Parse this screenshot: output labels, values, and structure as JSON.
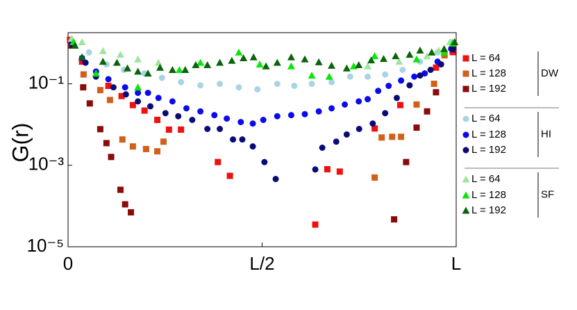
{
  "chart_data": {
    "type": "scatter",
    "ylabel": "G(r)",
    "yscale": "log",
    "xlim": [
      0,
      1
    ],
    "xticks": [
      0,
      {
        "value": 0.5,
        "label": "L/2"
      },
      {
        "value": 1,
        "label": "L"
      }
    ],
    "ylim": [
      1e-05,
      1.8
    ],
    "yticks": [
      {
        "value": 1e-05,
        "label": "10⁻⁵"
      },
      {
        "value": 0.001,
        "label": "10⁻³"
      },
      {
        "value": 0.1,
        "label": "10⁻¹"
      }
    ],
    "legend_groups": [
      "DW",
      "HI",
      "SF"
    ],
    "series": [
      {
        "name": "L = 64",
        "color": "#ee1111",
        "marker": "square",
        "x": [
          0.005,
          0.036,
          0.104,
          0.138,
          0.167,
          0.197,
          0.23,
          0.26,
          0.291,
          0.386,
          0.417,
          0.637,
          0.668,
          0.7,
          0.79,
          0.856,
          0.948,
          0.991
        ],
        "values": [
          1.2,
          0.35,
          0.089,
          0.05,
          0.03,
          0.022,
          0.013,
          0.0075,
          0.0075,
          0.0012,
          0.00055,
          3.5e-05,
          0.0008,
          0.0007,
          0.008,
          0.03,
          0.25,
          0.6
        ]
      },
      {
        "name": "L = 128",
        "color": "#d0601a",
        "marker": "square",
        "x": [
          0.011,
          0.04,
          0.083,
          0.108,
          0.14,
          0.167,
          0.201,
          0.23,
          0.246,
          0.79,
          0.808,
          0.835,
          0.858,
          0.898,
          0.943,
          0.97
        ],
        "values": [
          1.0,
          0.17,
          0.07,
          0.04,
          0.0043,
          0.0029,
          0.0025,
          0.0022,
          0.0038,
          0.0005,
          0.0048,
          0.005,
          0.005,
          0.031,
          0.1,
          0.5
        ]
      },
      {
        "name": "L = 192",
        "color": "#8b0a0a",
        "marker": "square",
        "x": [
          0.007,
          0.039,
          0.056,
          0.083,
          0.099,
          0.111,
          0.135,
          0.147,
          0.162,
          0.84,
          0.871,
          0.898,
          0.925,
          0.948,
          0.993
        ],
        "values": [
          0.87,
          0.082,
          0.033,
          0.0077,
          0.0035,
          0.0016,
          0.00025,
          0.00011,
          7e-05,
          4.7e-05,
          0.0012,
          0.0084,
          0.021,
          0.062,
          0.7
        ]
      },
      {
        "name": "L = 64",
        "color": "#a8d4e6",
        "marker": "circle",
        "x": [
          0.009,
          0.054,
          0.099,
          0.144,
          0.197,
          0.242,
          0.291,
          0.341,
          0.391,
          0.44,
          0.488,
          0.539,
          0.583,
          0.628,
          0.679,
          0.727,
          0.772,
          0.817,
          0.862,
          0.907,
          0.952,
          0.991
        ],
        "values": [
          1.06,
          0.59,
          0.3,
          0.22,
          0.18,
          0.14,
          0.11,
          0.092,
          0.1,
          0.082,
          0.073,
          0.1,
          0.089,
          0.1,
          0.11,
          0.15,
          0.15,
          0.17,
          0.22,
          0.35,
          0.59,
          1.06
        ]
      },
      {
        "name": "L = 128",
        "color": "#0a0aee",
        "marker": "circle",
        "x": [
          0.009,
          0.036,
          0.072,
          0.104,
          0.147,
          0.18,
          0.206,
          0.233,
          0.269,
          0.305,
          0.341,
          0.377,
          0.409,
          0.445,
          0.476,
          0.503,
          0.539,
          0.575,
          0.61,
          0.646,
          0.679,
          0.713,
          0.749,
          0.772,
          0.799,
          0.826,
          0.858,
          0.892,
          0.919,
          0.952,
          0.987
        ],
        "values": [
          0.98,
          0.43,
          0.2,
          0.13,
          0.082,
          0.06,
          0.06,
          0.045,
          0.037,
          0.025,
          0.021,
          0.017,
          0.014,
          0.0115,
          0.0106,
          0.013,
          0.016,
          0.017,
          0.018,
          0.021,
          0.025,
          0.031,
          0.037,
          0.042,
          0.067,
          0.089,
          0.12,
          0.15,
          0.18,
          0.35,
          0.72
        ]
      },
      {
        "name": "L = 192",
        "color": "#0a0a78",
        "marker": "circle",
        "x": [
          0.013,
          0.045,
          0.072,
          0.117,
          0.149,
          0.18,
          0.212,
          0.251,
          0.284,
          0.32,
          0.359,
          0.391,
          0.425,
          0.449,
          0.476,
          0.506,
          0.535,
          0.637,
          0.655,
          0.691,
          0.718,
          0.75,
          0.785,
          0.817,
          0.847,
          0.88,
          0.907,
          0.934,
          0.961,
          0.991
        ],
        "values": [
          0.87,
          0.33,
          0.15,
          0.082,
          0.055,
          0.037,
          0.028,
          0.019,
          0.016,
          0.013,
          0.0078,
          0.0078,
          0.0043,
          0.0043,
          0.0029,
          0.0012,
          0.00046,
          0.00079,
          0.0027,
          0.0038,
          0.0057,
          0.0078,
          0.0106,
          0.019,
          0.045,
          0.092,
          0.16,
          0.22,
          0.3,
          0.72
        ]
      },
      {
        "name": "L = 64",
        "color": "#9ee69e",
        "marker": "triangle",
        "x": [
          0.009,
          0.036,
          0.09,
          0.135,
          0.18,
          0.233,
          0.772,
          0.853,
          0.925,
          0.955,
          0.984
        ],
        "values": [
          1.29,
          1.06,
          0.64,
          0.52,
          0.4,
          0.33,
          0.27,
          0.35,
          0.48,
          0.66,
          1.06
        ]
      },
      {
        "name": "L = 128",
        "color": "#0ae60a",
        "marker": "triangle",
        "x": [
          0.014,
          0.072,
          0.18,
          0.287,
          0.341,
          0.44,
          0.494,
          0.575,
          0.628,
          0.673,
          0.736,
          0.79,
          0.898,
          0.969,
          0.991
        ],
        "values": [
          1.06,
          0.18,
          0.082,
          0.22,
          0.33,
          0.59,
          0.3,
          0.27,
          0.16,
          0.15,
          0.27,
          0.48,
          0.4,
          0.59,
          0.98
        ]
      },
      {
        "name": "L = 192",
        "color": "#0a640a",
        "marker": "triangle",
        "x": [
          0.018,
          0.036,
          0.09,
          0.126,
          0.153,
          0.18,
          0.206,
          0.237,
          0.269,
          0.302,
          0.329,
          0.359,
          0.391,
          0.422,
          0.452,
          0.478,
          0.51,
          0.539,
          0.575,
          0.61,
          0.646,
          0.679,
          0.718,
          0.749,
          0.781,
          0.813,
          0.844,
          0.88,
          0.907,
          0.937,
          0.969,
          0.996
        ],
        "values": [
          0.87,
          0.45,
          0.35,
          0.33,
          0.24,
          0.2,
          0.18,
          0.25,
          0.22,
          0.22,
          0.29,
          0.29,
          0.33,
          0.37,
          0.43,
          0.45,
          0.27,
          0.33,
          0.45,
          0.4,
          0.34,
          0.28,
          0.24,
          0.29,
          0.38,
          0.41,
          0.48,
          0.52,
          0.66,
          0.59,
          0.72,
          1.06
        ]
      }
    ]
  }
}
